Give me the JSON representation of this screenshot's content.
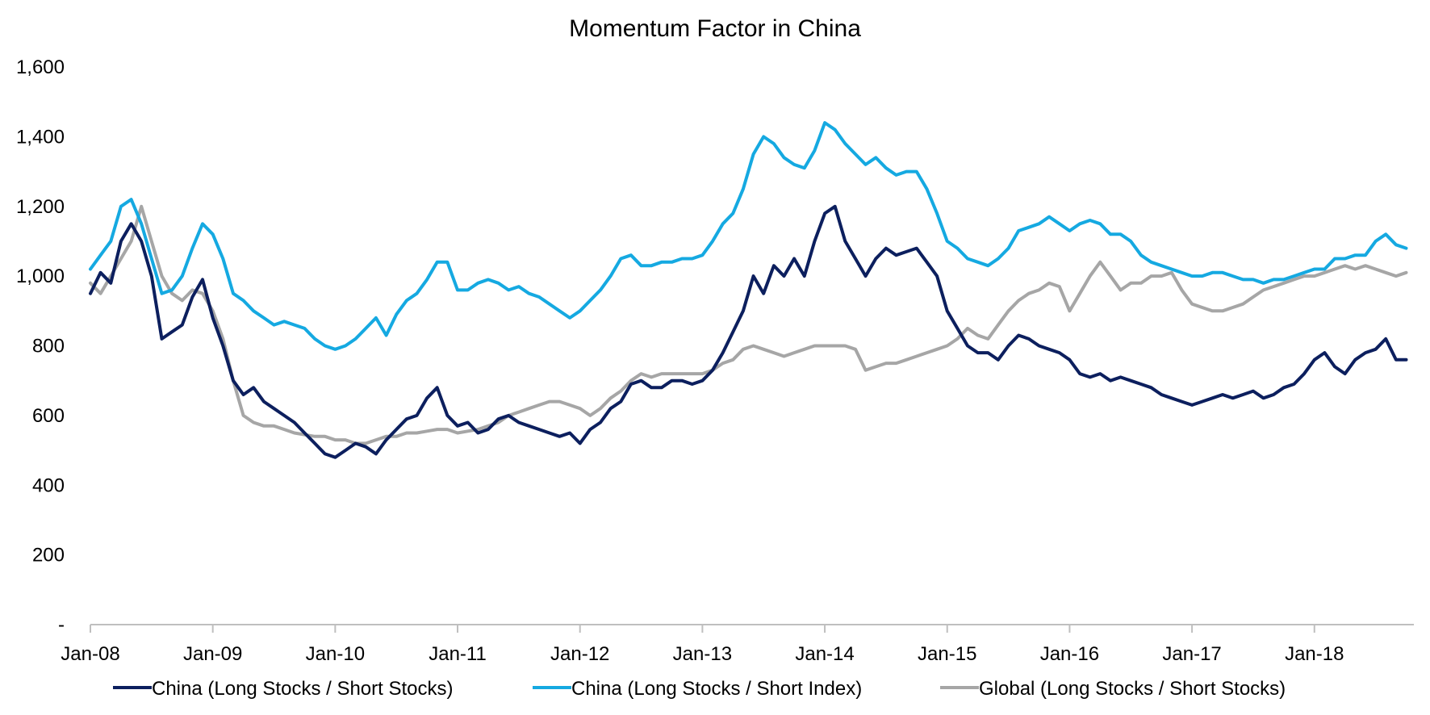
{
  "chart_data": {
    "type": "line",
    "title": "Momentum Factor in China",
    "xlabel": "",
    "ylabel": "",
    "ylim": [
      0,
      1600
    ],
    "xlim": [
      "2008-01",
      "2018-10"
    ],
    "y_ticks": [
      {
        "value": 0,
        "label": "-"
      },
      {
        "value": 200,
        "label": "200"
      },
      {
        "value": 400,
        "label": "400"
      },
      {
        "value": 600,
        "label": "600"
      },
      {
        "value": 800,
        "label": "800"
      },
      {
        "value": 1000,
        "label": "1,000"
      },
      {
        "value": 1200,
        "label": "1,200"
      },
      {
        "value": 1400,
        "label": "1,400"
      },
      {
        "value": 1600,
        "label": "1,600"
      }
    ],
    "x_ticks": [
      {
        "value": "2008-01",
        "label": "Jan-08"
      },
      {
        "value": "2009-01",
        "label": "Jan-09"
      },
      {
        "value": "2010-01",
        "label": "Jan-10"
      },
      {
        "value": "2011-01",
        "label": "Jan-11"
      },
      {
        "value": "2012-01",
        "label": "Jan-12"
      },
      {
        "value": "2013-01",
        "label": "Jan-13"
      },
      {
        "value": "2014-01",
        "label": "Jan-14"
      },
      {
        "value": "2015-01",
        "label": "Jan-15"
      },
      {
        "value": "2016-01",
        "label": "Jan-16"
      },
      {
        "value": "2017-01",
        "label": "Jan-17"
      },
      {
        "value": "2018-01",
        "label": "Jan-18"
      }
    ],
    "grid": false,
    "legend_position": "bottom",
    "series": [
      {
        "name": "China (Long Stocks / Short Stocks)",
        "color": "#0c1f5e",
        "x": [
          "2008-01",
          "2008-02",
          "2008-03",
          "2008-04",
          "2008-05",
          "2008-06",
          "2008-07",
          "2008-08",
          "2008-09",
          "2008-10",
          "2008-11",
          "2008-12",
          "2009-01",
          "2009-02",
          "2009-03",
          "2009-04",
          "2009-05",
          "2009-06",
          "2009-07",
          "2009-08",
          "2009-09",
          "2009-10",
          "2009-11",
          "2009-12",
          "2010-01",
          "2010-02",
          "2010-03",
          "2010-04",
          "2010-05",
          "2010-06",
          "2010-07",
          "2010-08",
          "2010-09",
          "2010-10",
          "2010-11",
          "2010-12",
          "2011-01",
          "2011-02",
          "2011-03",
          "2011-04",
          "2011-05",
          "2011-06",
          "2011-07",
          "2011-08",
          "2011-09",
          "2011-10",
          "2011-11",
          "2011-12",
          "2012-01",
          "2012-02",
          "2012-03",
          "2012-04",
          "2012-05",
          "2012-06",
          "2012-07",
          "2012-08",
          "2012-09",
          "2012-10",
          "2012-11",
          "2012-12",
          "2013-01",
          "2013-02",
          "2013-03",
          "2013-04",
          "2013-05",
          "2013-06",
          "2013-07",
          "2013-08",
          "2013-09",
          "2013-10",
          "2013-11",
          "2013-12",
          "2014-01",
          "2014-02",
          "2014-03",
          "2014-04",
          "2014-05",
          "2014-06",
          "2014-07",
          "2014-08",
          "2014-09",
          "2014-10",
          "2014-11",
          "2014-12",
          "2015-01",
          "2015-02",
          "2015-03",
          "2015-04",
          "2015-05",
          "2015-06",
          "2015-07",
          "2015-08",
          "2015-09",
          "2015-10",
          "2015-11",
          "2015-12",
          "2016-01",
          "2016-02",
          "2016-03",
          "2016-04",
          "2016-05",
          "2016-06",
          "2016-07",
          "2016-08",
          "2016-09",
          "2016-10",
          "2016-11",
          "2016-12",
          "2017-01",
          "2017-02",
          "2017-03",
          "2017-04",
          "2017-05",
          "2017-06",
          "2017-07",
          "2017-08",
          "2017-09",
          "2017-10",
          "2017-11",
          "2017-12",
          "2018-01",
          "2018-02",
          "2018-03",
          "2018-04",
          "2018-05",
          "2018-06",
          "2018-07",
          "2018-08",
          "2018-09",
          "2018-10"
        ],
        "values": [
          950,
          1010,
          980,
          1100,
          1150,
          1100,
          1000,
          820,
          840,
          860,
          940,
          990,
          880,
          800,
          700,
          660,
          680,
          640,
          620,
          600,
          580,
          550,
          520,
          490,
          480,
          500,
          520,
          510,
          490,
          530,
          560,
          590,
          600,
          650,
          680,
          600,
          570,
          580,
          550,
          560,
          590,
          600,
          580,
          570,
          560,
          550,
          540,
          550,
          520,
          560,
          580,
          620,
          640,
          690,
          700,
          680,
          680,
          700,
          700,
          690,
          700,
          730,
          780,
          840,
          900,
          1000,
          950,
          1030,
          1000,
          1050,
          1000,
          1100,
          1180,
          1200,
          1100,
          1050,
          1000,
          1050,
          1080,
          1060,
          1070,
          1080,
          1040,
          1000,
          900,
          850,
          800,
          780,
          780,
          760,
          800,
          830,
          820,
          800,
          790,
          780,
          760,
          720,
          710,
          720,
          700,
          710,
          700,
          690,
          680,
          660,
          650,
          640,
          630,
          640,
          650,
          660,
          650,
          660,
          670,
          650,
          660,
          680,
          690,
          720,
          760,
          780,
          740,
          720,
          760,
          780,
          790,
          820,
          760,
          760
        ]
      },
      {
        "name": "China (Long Stocks / Short Index)",
        "color": "#15a9e1",
        "x": [
          "2008-01",
          "2008-02",
          "2008-03",
          "2008-04",
          "2008-05",
          "2008-06",
          "2008-07",
          "2008-08",
          "2008-09",
          "2008-10",
          "2008-11",
          "2008-12",
          "2009-01",
          "2009-02",
          "2009-03",
          "2009-04",
          "2009-05",
          "2009-06",
          "2009-07",
          "2009-08",
          "2009-09",
          "2009-10",
          "2009-11",
          "2009-12",
          "2010-01",
          "2010-02",
          "2010-03",
          "2010-04",
          "2010-05",
          "2010-06",
          "2010-07",
          "2010-08",
          "2010-09",
          "2010-10",
          "2010-11",
          "2010-12",
          "2011-01",
          "2011-02",
          "2011-03",
          "2011-04",
          "2011-05",
          "2011-06",
          "2011-07",
          "2011-08",
          "2011-09",
          "2011-10",
          "2011-11",
          "2011-12",
          "2012-01",
          "2012-02",
          "2012-03",
          "2012-04",
          "2012-05",
          "2012-06",
          "2012-07",
          "2012-08",
          "2012-09",
          "2012-10",
          "2012-11",
          "2012-12",
          "2013-01",
          "2013-02",
          "2013-03",
          "2013-04",
          "2013-05",
          "2013-06",
          "2013-07",
          "2013-08",
          "2013-09",
          "2013-10",
          "2013-11",
          "2013-12",
          "2014-01",
          "2014-02",
          "2014-03",
          "2014-04",
          "2014-05",
          "2014-06",
          "2014-07",
          "2014-08",
          "2014-09",
          "2014-10",
          "2014-11",
          "2014-12",
          "2015-01",
          "2015-02",
          "2015-03",
          "2015-04",
          "2015-05",
          "2015-06",
          "2015-07",
          "2015-08",
          "2015-09",
          "2015-10",
          "2015-11",
          "2015-12",
          "2016-01",
          "2016-02",
          "2016-03",
          "2016-04",
          "2016-05",
          "2016-06",
          "2016-07",
          "2016-08",
          "2016-09",
          "2016-10",
          "2016-11",
          "2016-12",
          "2017-01",
          "2017-02",
          "2017-03",
          "2017-04",
          "2017-05",
          "2017-06",
          "2017-07",
          "2017-08",
          "2017-09",
          "2017-10",
          "2017-11",
          "2017-12",
          "2018-01",
          "2018-02",
          "2018-03",
          "2018-04",
          "2018-05",
          "2018-06",
          "2018-07",
          "2018-08",
          "2018-09",
          "2018-10"
        ],
        "values": [
          1020,
          1060,
          1100,
          1200,
          1220,
          1150,
          1050,
          950,
          960,
          1000,
          1080,
          1150,
          1120,
          1050,
          950,
          930,
          900,
          880,
          860,
          870,
          860,
          850,
          820,
          800,
          790,
          800,
          820,
          850,
          880,
          830,
          890,
          930,
          950,
          990,
          1040,
          1040,
          960,
          960,
          980,
          990,
          980,
          960,
          970,
          950,
          940,
          920,
          900,
          880,
          900,
          930,
          960,
          1000,
          1050,
          1060,
          1030,
          1030,
          1040,
          1040,
          1050,
          1050,
          1060,
          1100,
          1150,
          1180,
          1250,
          1350,
          1400,
          1380,
          1340,
          1320,
          1310,
          1360,
          1440,
          1420,
          1380,
          1350,
          1320,
          1340,
          1310,
          1290,
          1300,
          1300,
          1250,
          1180,
          1100,
          1080,
          1050,
          1040,
          1030,
          1050,
          1080,
          1130,
          1140,
          1150,
          1170,
          1150,
          1130,
          1150,
          1160,
          1150,
          1120,
          1120,
          1100,
          1060,
          1040,
          1030,
          1020,
          1010,
          1000,
          1000,
          1010,
          1010,
          1000,
          990,
          990,
          980,
          990,
          990,
          1000,
          1010,
          1020,
          1020,
          1050,
          1050,
          1060,
          1060,
          1100,
          1120,
          1090,
          1080
        ]
      },
      {
        "name": "Global (Long Stocks / Short Stocks)",
        "color": "#a6a6a6",
        "x": [
          "2008-01",
          "2008-02",
          "2008-03",
          "2008-04",
          "2008-05",
          "2008-06",
          "2008-07",
          "2008-08",
          "2008-09",
          "2008-10",
          "2008-11",
          "2008-12",
          "2009-01",
          "2009-02",
          "2009-03",
          "2009-04",
          "2009-05",
          "2009-06",
          "2009-07",
          "2009-08",
          "2009-09",
          "2009-10",
          "2009-11",
          "2009-12",
          "2010-01",
          "2010-02",
          "2010-03",
          "2010-04",
          "2010-05",
          "2010-06",
          "2010-07",
          "2010-08",
          "2010-09",
          "2010-10",
          "2010-11",
          "2010-12",
          "2011-01",
          "2011-02",
          "2011-03",
          "2011-04",
          "2011-05",
          "2011-06",
          "2011-07",
          "2011-08",
          "2011-09",
          "2011-10",
          "2011-11",
          "2011-12",
          "2012-01",
          "2012-02",
          "2012-03",
          "2012-04",
          "2012-05",
          "2012-06",
          "2012-07",
          "2012-08",
          "2012-09",
          "2012-10",
          "2012-11",
          "2012-12",
          "2013-01",
          "2013-02",
          "2013-03",
          "2013-04",
          "2013-05",
          "2013-06",
          "2013-07",
          "2013-08",
          "2013-09",
          "2013-10",
          "2013-11",
          "2013-12",
          "2014-01",
          "2014-02",
          "2014-03",
          "2014-04",
          "2014-05",
          "2014-06",
          "2014-07",
          "2014-08",
          "2014-09",
          "2014-10",
          "2014-11",
          "2014-12",
          "2015-01",
          "2015-02",
          "2015-03",
          "2015-04",
          "2015-05",
          "2015-06",
          "2015-07",
          "2015-08",
          "2015-09",
          "2015-10",
          "2015-11",
          "2015-12",
          "2016-01",
          "2016-02",
          "2016-03",
          "2016-04",
          "2016-05",
          "2016-06",
          "2016-07",
          "2016-08",
          "2016-09",
          "2016-10",
          "2016-11",
          "2016-12",
          "2017-01",
          "2017-02",
          "2017-03",
          "2017-04",
          "2017-05",
          "2017-06",
          "2017-07",
          "2017-08",
          "2017-09",
          "2017-10",
          "2017-11",
          "2017-12",
          "2018-01",
          "2018-02",
          "2018-03",
          "2018-04",
          "2018-05",
          "2018-06",
          "2018-07",
          "2018-08",
          "2018-09",
          "2018-10"
        ],
        "values": [
          980,
          950,
          1000,
          1050,
          1100,
          1200,
          1100,
          1000,
          950,
          930,
          960,
          950,
          900,
          820,
          700,
          600,
          580,
          570,
          570,
          560,
          550,
          545,
          540,
          540,
          530,
          530,
          520,
          520,
          530,
          540,
          540,
          550,
          550,
          555,
          560,
          560,
          550,
          555,
          560,
          570,
          580,
          600,
          610,
          620,
          630,
          640,
          640,
          630,
          620,
          600,
          620,
          650,
          670,
          700,
          720,
          710,
          720,
          720,
          720,
          720,
          720,
          730,
          750,
          760,
          790,
          800,
          790,
          780,
          770,
          780,
          790,
          800,
          800,
          800,
          800,
          790,
          730,
          740,
          750,
          750,
          760,
          770,
          780,
          790,
          800,
          820,
          850,
          830,
          820,
          860,
          900,
          930,
          950,
          960,
          980,
          970,
          900,
          950,
          1000,
          1040,
          1000,
          960,
          980,
          980,
          1000,
          1000,
          1010,
          960,
          920,
          910,
          900,
          900,
          910,
          920,
          940,
          960,
          970,
          980,
          990,
          1000,
          1000,
          1010,
          1020,
          1030,
          1020,
          1030,
          1020,
          1010,
          1000,
          1010
        ]
      }
    ]
  }
}
